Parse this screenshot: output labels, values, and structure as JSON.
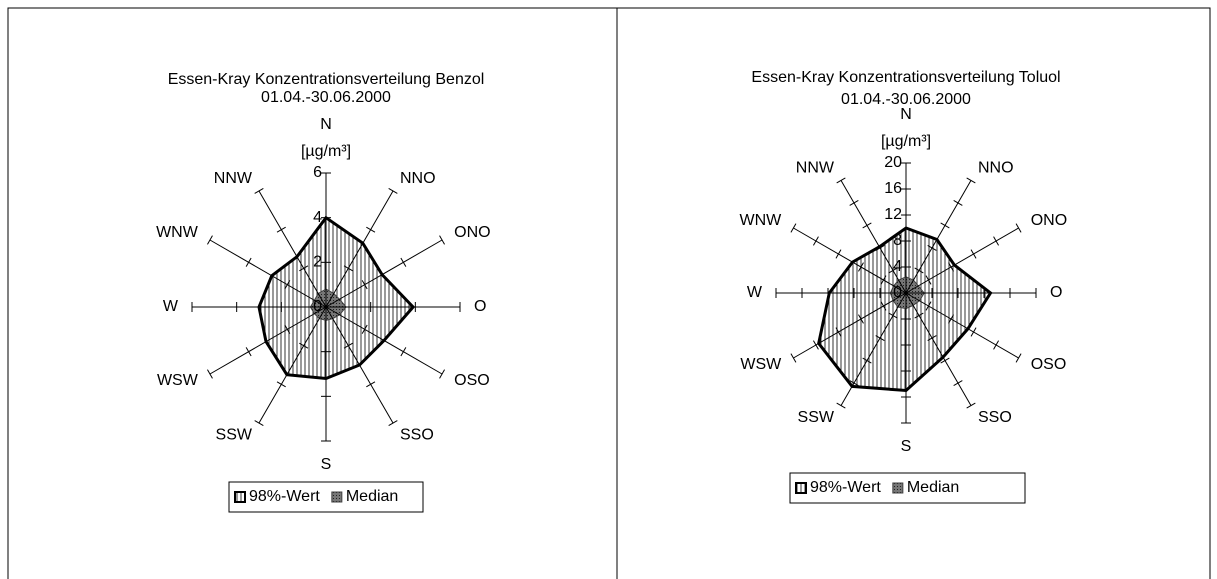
{
  "chart_data": [
    {
      "type": "radar",
      "title": "Essen-Kray Konzentrationsverteilung  Benzol",
      "subtitle": "01.04.-30.06.2000",
      "unit": "[µg/m³]",
      "categories": [
        "N",
        "NNO",
        "ONO",
        "O",
        "OSO",
        "SSO",
        "S",
        "SSW",
        "WSW",
        "W",
        "WNW",
        "NNW"
      ],
      "ylim": [
        0,
        6
      ],
      "yticks": [
        0,
        2,
        4,
        6
      ],
      "series": [
        {
          "name": "98%-Wert",
          "color": "#000000",
          "values": [
            4.0,
            3.3,
            2.9,
            3.9,
            3.0,
            3.0,
            3.2,
            3.5,
            3.1,
            3.0,
            2.8,
            2.6
          ]
        },
        {
          "name": "Median",
          "color": "#404040",
          "values": [
            0.8,
            0.7,
            0.7,
            0.9,
            0.7,
            0.6,
            0.6,
            0.6,
            0.6,
            0.7,
            0.6,
            0.7
          ]
        }
      ]
    },
    {
      "type": "radar",
      "title": "Essen-Kray Konzentrationsverteilung  Toluol",
      "subtitle": "01.04.-30.06.2000",
      "unit": "[µg/m³]",
      "categories": [
        "N",
        "NNO",
        "ONO",
        "O",
        "OSO",
        "SSO",
        "S",
        "SSW",
        "WSW",
        "W",
        "WNW",
        "NNW"
      ],
      "ylim": [
        0,
        20
      ],
      "yticks": [
        0,
        4,
        8,
        12,
        16,
        20
      ],
      "series": [
        {
          "name": "98%-Wert",
          "color": "#000000",
          "values": [
            10,
            9.5,
            8.6,
            13,
            11,
            11.4,
            15,
            16.6,
            15.5,
            11.8,
            9.5,
            8.2
          ]
        },
        {
          "name": "Median",
          "color": "#404040",
          "values": [
            2.5,
            2.3,
            2.2,
            2.8,
            2.4,
            2.2,
            2.4,
            2.5,
            2.3,
            2.4,
            2.2,
            2.3
          ]
        }
      ]
    }
  ]
}
